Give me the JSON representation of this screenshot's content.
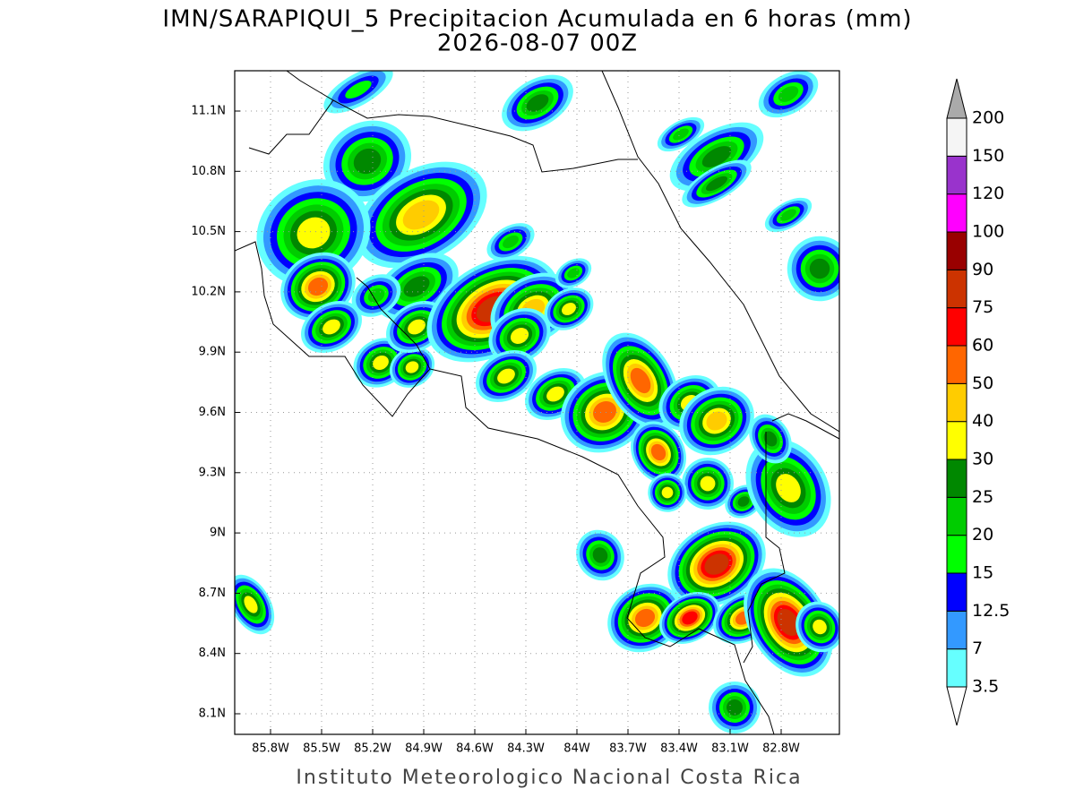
{
  "title": [
    "IMN/SARAPIQUI_5 Precipitacion Acumulada en 6 horas (mm)",
    "2026-08-07 00Z"
  ],
  "map": {
    "x_labels": [
      "85.8W",
      "85.5W",
      "85.2W",
      "84.9W",
      "84.6W",
      "84.3W",
      "84W",
      "83.7W",
      "83.4W",
      "83.1W",
      "82.8W"
    ],
    "y_labels": [
      "11.1N",
      "10.8N",
      "10.5N",
      "10.2N",
      "9.9N",
      "9.6N",
      "9.3N",
      "9N",
      "8.7N",
      "8.4N",
      "8.1N"
    ]
  },
  "colorbar": {
    "levels": [
      3.5,
      7,
      12.5,
      15,
      20,
      25,
      30,
      40,
      50,
      60,
      75,
      90,
      100,
      120,
      150,
      200
    ],
    "colors": [
      "#66ffff",
      "#3399ff",
      "#0000ff",
      "#00ff00",
      "#00cc00",
      "#008800",
      "#ffff00",
      "#ffcc00",
      "#ff6600",
      "#ff0000",
      "#cc3300",
      "#990000",
      "#ff00ff",
      "#9933cc",
      "#f5f5f5"
    ],
    "over_color": "#aaaaaa",
    "under_color": "#ffffff"
  },
  "footer": "Instituto Meteorologico Nacional Costa Rica"
}
